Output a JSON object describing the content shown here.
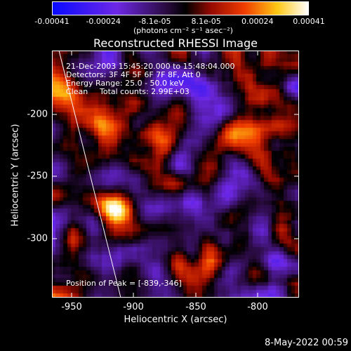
{
  "chart_data": {
    "type": "heatmap",
    "title": "Reconstructed RHESSI Image",
    "xlabel": "Heliocentric X (arcsec)",
    "ylabel": "Heliocentric Y (arcsec)",
    "x_ticks": [
      "-950",
      "-900",
      "-850",
      "-800"
    ],
    "y_ticks": [
      "-200",
      "-250",
      "-300"
    ],
    "xlim": [
      -968,
      -772
    ],
    "ylim": [
      -348,
      -158
    ],
    "colorbar": {
      "ticks": [
        "-0.00041",
        "-0.00024",
        "-8.1e-05",
        "8.1e-05",
        "0.00024",
        "0.00041"
      ],
      "label": "(photons cm⁻² s⁻¹ asec⁻²)",
      "range": [
        -0.00041,
        0.00041
      ]
    },
    "annotations": {
      "time": "21-Dec-2003 15:45:20.000 to 15:48:04.000",
      "detectors": "Detectors: 3F 4F 5F 6F 7F 8F, Att 0",
      "energy": "Energy Range: 25.0 - 50.0 keV",
      "clean_label": "Clean",
      "total_counts": "Total counts: 2.99E+03",
      "peak": "Position of Peak = [-839,-346]"
    },
    "limb_line": true
  },
  "footer": {
    "timestamp": "8-May-2022 00:59"
  },
  "colors": {
    "background": "#000000",
    "foreground": "#ffffff"
  }
}
